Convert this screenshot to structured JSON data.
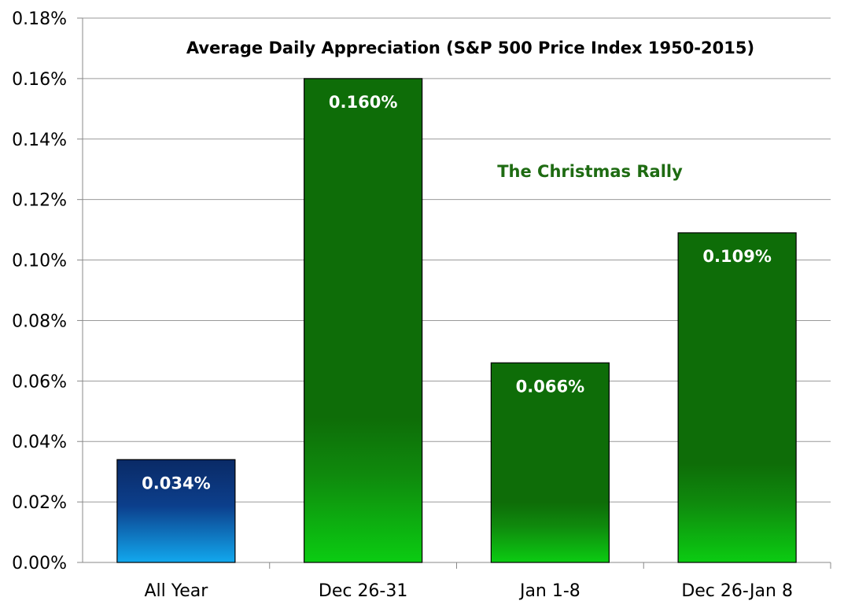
{
  "chart_data": {
    "type": "bar",
    "title": "Average Daily Appreciation (S&P 500 Price Index 1950-2015)",
    "annotation": "The Christmas Rally",
    "xlabel": "",
    "ylabel": "",
    "categories": [
      "All Year",
      "Dec 26-31",
      "Jan 1-8",
      "Dec 26-Jan 8"
    ],
    "values": [
      0.034,
      0.16,
      0.066,
      0.109
    ],
    "data_labels": [
      "0.034%",
      "0.160%",
      "0.066%",
      "0.109%"
    ],
    "bar_styles": [
      "blue",
      "green",
      "green",
      "green"
    ],
    "ylim": [
      0,
      0.18
    ],
    "yticks": [
      0,
      0.02,
      0.04,
      0.06,
      0.08,
      0.1,
      0.12,
      0.14,
      0.16,
      0.18
    ],
    "ytick_labels": [
      "0.00%",
      "0.02%",
      "0.04%",
      "0.06%",
      "0.08%",
      "0.10%",
      "0.12%",
      "0.14%",
      "0.16%",
      "0.18%"
    ],
    "grid": true,
    "legend": "none"
  },
  "colors": {
    "blue_top": "#0a2a66",
    "blue_bottom": "#12a8ee",
    "green_top": "#0e6d08",
    "green_bottom": "#0bcc12",
    "gridline": "#9a9a9a",
    "annotation": "#1e6b12"
  }
}
